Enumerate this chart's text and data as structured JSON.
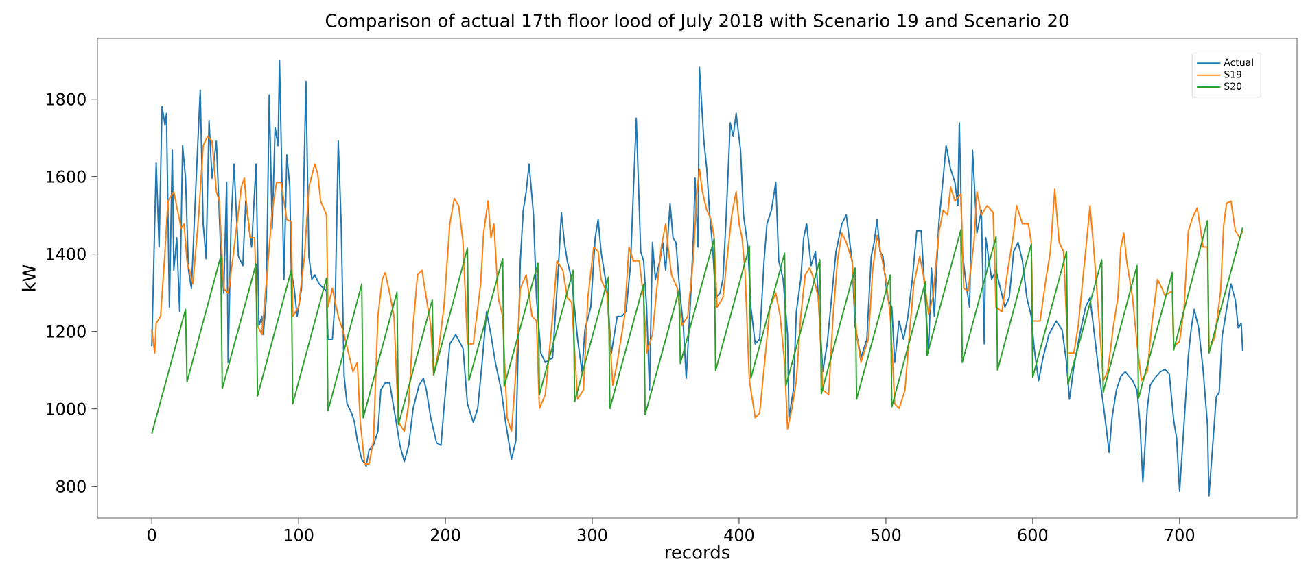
{
  "chart_data": {
    "type": "line",
    "title": "Comparison of actual 17th floor lood of July 2018 with Scenario 19 and Scenario 20",
    "xlabel": "records",
    "ylabel": "kW",
    "xlim": [
      -37,
      780
    ],
    "ylim": [
      718,
      1957
    ],
    "xticks": [
      0,
      100,
      200,
      300,
      400,
      500,
      600,
      700
    ],
    "yticks": [
      800,
      1000,
      1200,
      1400,
      1600,
      1800
    ],
    "legend": "top right",
    "series": [
      {
        "name": "Actual",
        "color": "#1f77b4",
        "x": [
          0,
          3,
          5,
          7,
          9,
          10,
          12,
          14,
          15,
          17,
          19,
          21,
          23,
          25,
          27,
          30,
          33,
          35,
          37,
          39,
          41,
          44,
          47,
          49,
          51,
          52,
          54,
          56,
          59,
          62,
          64,
          68,
          71,
          73,
          75,
          76,
          78,
          80,
          82,
          84,
          86,
          87,
          88,
          90,
          92,
          94,
          95,
          97,
          99,
          102,
          104,
          105,
          107,
          109,
          111,
          114,
          117,
          119,
          120,
          123,
          125,
          127,
          129,
          131,
          133,
          136,
          138,
          140,
          143,
          146,
          148,
          151,
          154,
          156,
          159,
          162,
          166,
          169,
          172,
          175,
          178,
          182,
          185,
          187,
          190,
          194,
          197,
          199,
          203,
          207,
          212,
          215,
          219,
          222,
          225,
          228,
          231,
          234,
          238,
          241,
          245,
          248,
          251,
          253,
          255,
          257,
          260,
          262,
          265,
          268,
          273,
          277,
          279,
          281,
          283,
          286,
          290,
          293,
          295,
          299,
          302,
          304,
          306,
          310,
          313,
          317,
          320,
          323,
          326,
          330,
          333,
          335,
          337,
          339,
          341,
          343,
          346,
          348,
          350,
          353,
          355,
          357,
          360,
          362,
          364,
          367,
          369,
          370,
          372,
          373,
          376,
          378,
          380,
          382,
          384,
          387,
          389,
          391,
          394,
          396,
          398,
          401,
          403,
          406,
          408,
          411,
          414,
          417,
          419,
          422,
          425,
          427,
          430,
          433,
          434,
          437,
          439,
          442,
          444,
          446,
          449,
          452,
          454,
          457,
          460,
          463,
          466,
          470,
          473,
          477,
          479,
          483,
          487,
          490,
          492,
          494,
          496,
          498,
          501,
          504,
          506,
          509,
          512,
          515,
          518,
          521,
          524,
          526,
          529,
          531,
          533,
          536,
          539,
          541,
          544,
          547,
          549,
          550,
          552,
          555,
          557,
          559,
          562,
          565,
          567,
          568,
          572,
          575,
          578,
          581,
          584,
          587,
          590,
          593,
          596,
          599,
          601,
          604,
          607,
          611,
          616,
          620,
          623,
          625,
          628,
          632,
          636,
          639,
          642,
          645,
          648,
          650,
          652,
          654,
          657,
          660,
          663,
          668,
          671,
          673,
          675,
          678,
          680,
          683,
          687,
          690,
          693,
          696,
          698,
          700,
          703,
          706,
          708,
          710,
          713,
          716,
          719,
          720,
          722,
          725,
          727,
          729,
          732,
          735,
          738,
          740,
          742,
          743
        ],
        "values": [
          1162,
          1635,
          1418,
          1781,
          1733,
          1763,
          1263,
          1668,
          1358,
          1442,
          1251,
          1680,
          1596,
          1358,
          1311,
          1573,
          1823,
          1478,
          1388,
          1745,
          1596,
          1692,
          1406,
          1299,
          1585,
          1120,
          1478,
          1632,
          1394,
          1370,
          1537,
          1418,
          1632,
          1215,
          1239,
          1192,
          1287,
          1811,
          1466,
          1727,
          1680,
          1900,
          1715,
          1335,
          1656,
          1573,
          1358,
          1311,
          1239,
          1311,
          1668,
          1846,
          1394,
          1335,
          1346,
          1323,
          1311,
          1305,
          1180,
          1180,
          1287,
          1692,
          1478,
          1084,
          1013,
          990,
          966,
          918,
          870,
          852,
          894,
          906,
          942,
          1049,
          1067,
          1067,
          977,
          906,
          864,
          906,
          1001,
          1061,
          1079,
          1049,
          977,
          912,
          906,
          1001,
          1168,
          1192,
          1156,
          1013,
          965,
          1001,
          1120,
          1251,
          1192,
          1120,
          1049,
          965,
          870,
          918,
          1382,
          1513,
          1561,
          1632,
          1501,
          1287,
          1144,
          1120,
          1132,
          1370,
          1507,
          1430,
          1382,
          1335,
          1180,
          1096,
          1204,
          1263,
          1442,
          1489,
          1406,
          1311,
          1144,
          1239,
          1239,
          1251,
          1370,
          1751,
          1406,
          1382,
          1263,
          1049,
          1430,
          1335,
          1382,
          1430,
          1358,
          1531,
          1442,
          1430,
          1287,
          1215,
          1079,
          1287,
          1454,
          1596,
          1418,
          1882,
          1692,
          1620,
          1501,
          1418,
          1287,
          1299,
          1335,
          1478,
          1739,
          1704,
          1763,
          1668,
          1501,
          1418,
          1263,
          1168,
          1180,
          1382,
          1478,
          1513,
          1585,
          1382,
          1335,
          1192,
          977,
          1049,
          1251,
          1335,
          1442,
          1478,
          1370,
          1406,
          1287,
          1096,
          1168,
          1287,
          1406,
          1478,
          1501,
          1382,
          1215,
          1132,
          1180,
          1394,
          1430,
          1489,
          1406,
          1394,
          1287,
          1263,
          1120,
          1227,
          1180,
          1239,
          1335,
          1460,
          1460,
          1335,
          1144,
          1364,
          1239,
          1478,
          1596,
          1680,
          1620,
          1585,
          1525,
          1739,
          1406,
          1311,
          1263,
          1668,
          1454,
          1513,
          1168,
          1442,
          1335,
          1358,
          1311,
          1263,
          1287,
          1406,
          1430,
          1382,
          1287,
          1239,
          1156,
          1073,
          1132,
          1192,
          1227,
          1204,
          1120,
          1025,
          1108,
          1192,
          1263,
          1287,
          1192,
          1096,
          1013,
          953,
          888,
          977,
          1049,
          1084,
          1096,
          1073,
          1049,
          965,
          811,
          1001,
          1061,
          1079,
          1096,
          1102,
          1090,
          971,
          924,
          787,
          959,
          1138,
          1209,
          1257,
          1209,
          1102,
          959,
          775,
          876,
          1031,
          1043,
          1186,
          1257,
          1323,
          1281,
          1209,
          1221,
          1150
        ]
      },
      {
        "name": "S19",
        "color": "#ff7f0e",
        "x": [
          0,
          2,
          3,
          6,
          9,
          11,
          15,
          20,
          22,
          24,
          28,
          32,
          35,
          38,
          41,
          44,
          46,
          49,
          52,
          55,
          58,
          61,
          63,
          64,
          67,
          70,
          72,
          75,
          79,
          82,
          85,
          88,
          92,
          95,
          96,
          100,
          104,
          107,
          111,
          113,
          115,
          119,
          120,
          123,
          127,
          131,
          134,
          137,
          140,
          142,
          145,
          148,
          151,
          154,
          157,
          159,
          162,
          165,
          168,
          172,
          175,
          178,
          181,
          184,
          187,
          190,
          192,
          195,
          199,
          203,
          206,
          209,
          212,
          215,
          219,
          224,
          226,
          229,
          231,
          233,
          236,
          239,
          242,
          245,
          248,
          251,
          255,
          259,
          262,
          264,
          268,
          273,
          276,
          280,
          283,
          286,
          290,
          294,
          297,
          301,
          304,
          306,
          310,
          314,
          317,
          322,
          325,
          328,
          332,
          335,
          337,
          341,
          344,
          347,
          350,
          352,
          354,
          358,
          361,
          365,
          369,
          371,
          373,
          375,
          378,
          381,
          383,
          385,
          389,
          392,
          395,
          398,
          400,
          402,
          404,
          407,
          411,
          414,
          418,
          421,
          425,
          428,
          431,
          433,
          436,
          439,
          442,
          445,
          448,
          451,
          454,
          457,
          461,
          464,
          467,
          470,
          473,
          477,
          480,
          483,
          488,
          491,
          494,
          497,
          500,
          503,
          506,
          509,
          511,
          513,
          516,
          519,
          523,
          526,
          529,
          532,
          536,
          539,
          542,
          544,
          547,
          551,
          553,
          556,
          560,
          562,
          565,
          569,
          573,
          575,
          579,
          583,
          587,
          589,
          593,
          597,
          599,
          600,
          605,
          609,
          612,
          615,
          618,
          621,
          624,
          628,
          631,
          636,
          639,
          642,
          645,
          648,
          651,
          655,
          658,
          660,
          662,
          664,
          668,
          671,
          674,
          678,
          681,
          685,
          688,
          690,
          695,
          696,
          700,
          703,
          706,
          709,
          712,
          714,
          716,
          719,
          720,
          724,
          728,
          730,
          732,
          735,
          738,
          741,
          743
        ],
        "values": [
          1204,
          1144,
          1221,
          1239,
          1406,
          1537,
          1561,
          1466,
          1478,
          1382,
          1323,
          1501,
          1680,
          1704,
          1692,
          1561,
          1537,
          1311,
          1299,
          1382,
          1478,
          1573,
          1596,
          1549,
          1442,
          1442,
          1215,
          1192,
          1370,
          1513,
          1585,
          1585,
          1489,
          1483,
          1239,
          1263,
          1394,
          1573,
          1632,
          1608,
          1537,
          1501,
          1263,
          1311,
          1239,
          1192,
          1144,
          1096,
          1120,
          966,
          858,
          858,
          918,
          1239,
          1335,
          1352,
          1299,
          1239,
          966,
          942,
          1013,
          1215,
          1346,
          1358,
          1287,
          1215,
          1088,
          1144,
          1263,
          1478,
          1543,
          1525,
          1430,
          1168,
          1168,
          1323,
          1454,
          1537,
          1442,
          1478,
          1287,
          1239,
          977,
          942,
          1096,
          1311,
          1346,
          1239,
          1227,
          1001,
          1037,
          1239,
          1382,
          1358,
          1287,
          1275,
          1025,
          1049,
          1287,
          1418,
          1406,
          1335,
          1299,
          1061,
          1120,
          1239,
          1418,
          1382,
          1382,
          1287,
          1144,
          1192,
          1311,
          1418,
          1478,
          1406,
          1346,
          1311,
          1215,
          1239,
          1394,
          1549,
          1620,
          1561,
          1513,
          1489,
          1442,
          1263,
          1287,
          1394,
          1501,
          1561,
          1478,
          1442,
          1358,
          1073,
          977,
          989,
          1144,
          1263,
          1299,
          1239,
          1120,
          948,
          1001,
          1073,
          1239,
          1346,
          1364,
          1335,
          1287,
          1049,
          1037,
          1239,
          1382,
          1454,
          1430,
          1382,
          1192,
          1120,
          1180,
          1358,
          1448,
          1394,
          1335,
          1239,
          1013,
          1001,
          1025,
          1049,
          1192,
          1323,
          1394,
          1335,
          1245,
          1287,
          1454,
          1513,
          1501,
          1573,
          1537,
          1555,
          1311,
          1305,
          1430,
          1561,
          1501,
          1525,
          1507,
          1263,
          1251,
          1358,
          1454,
          1525,
          1478,
          1478,
          1430,
          1227,
          1227,
          1335,
          1406,
          1567,
          1430,
          1406,
          1144,
          1144,
          1215,
          1406,
          1525,
          1394,
          1239,
          1073,
          1096,
          1215,
          1287,
          1418,
          1454,
          1382,
          1287,
          1168,
          1073,
          1096,
          1215,
          1335,
          1311,
          1293,
          1305,
          1162,
          1174,
          1257,
          1460,
          1495,
          1519,
          1471,
          1418,
          1418,
          1150,
          1186,
          1305,
          1471,
          1531,
          1537,
          1460,
          1442,
          1460
        ]
      },
      {
        "name": "S20",
        "color": "#2ca02c",
        "x": [
          0,
          23,
          24,
          47,
          48,
          71,
          72,
          95,
          96,
          119,
          120,
          143,
          144,
          167,
          168,
          191,
          192,
          215,
          216,
          239,
          240,
          263,
          264,
          287,
          288,
          311,
          312,
          335,
          336,
          359,
          360,
          383,
          384,
          407,
          408,
          431,
          432,
          455,
          456,
          479,
          480,
          503,
          504,
          527,
          528,
          551,
          552,
          575,
          576,
          599,
          600,
          623,
          624,
          647,
          648,
          671,
          672,
          695,
          696,
          719,
          720,
          743
        ],
        "values": [
          936,
          1257,
          1070,
          1394,
          1052,
          1374,
          1033,
          1358,
          1013,
          1338,
          995,
          1322,
          977,
          1301,
          960,
          1281,
          1088,
          1415,
          1073,
          1388,
          1058,
          1376,
          1037,
          1358,
          1019,
          1340,
          1001,
          1322,
          985,
          1305,
          1117,
          1439,
          1099,
          1420,
          1079,
          1402,
          1061,
          1385,
          1039,
          1364,
          1025,
          1346,
          1005,
          1329,
          1138,
          1462,
          1120,
          1444,
          1100,
          1426,
          1082,
          1406,
          1063,
          1385,
          1043,
          1370,
          1027,
          1352,
          1152,
          1486,
          1144,
          1468
        ]
      }
    ]
  }
}
